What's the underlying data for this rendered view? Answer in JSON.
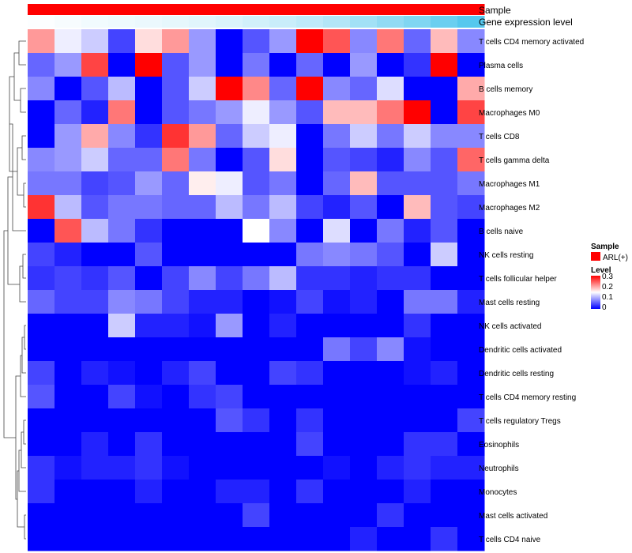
{
  "chart_data": {
    "type": "heatmap",
    "annotation_tracks": [
      {
        "name": "Sample",
        "label": "Sample"
      },
      {
        "name": "gene",
        "label": "Gene expression level"
      }
    ],
    "rows": [
      "T cells CD4 memory activated",
      "Plasma cells",
      "B cells memory",
      "Macrophages M0",
      "T cells CD8",
      "T cells gamma delta",
      "Macrophages M1",
      "Macrophages M2",
      "B cells naive",
      "NK cells resting",
      "T cells follicular helper",
      "Mast cells resting",
      "NK cells activated",
      "Dendritic cells activated",
      "Dendritic cells resting",
      "T cells CD4 memory resting",
      "T cells regulatory  Tregs",
      "Eosinophils",
      "Neutrophils",
      "Monocytes",
      "Mast cells activated",
      "T cells CD4 naive"
    ],
    "n_columns": 17,
    "values": [
      [
        0.21,
        0.14,
        0.12,
        0.04,
        0.17,
        0.21,
        0.09,
        0.0,
        0.05,
        0.09,
        0.3,
        0.25,
        0.08,
        0.23,
        0.06,
        0.19,
        0.08
      ],
      [
        0.06,
        0.09,
        0.26,
        0.0,
        0.3,
        0.05,
        0.09,
        0.0,
        0.07,
        0.0,
        0.06,
        0.0,
        0.09,
        0.0,
        0.03,
        0.3,
        0.0
      ],
      [
        0.08,
        0.0,
        0.05,
        0.11,
        0.0,
        0.05,
        0.12,
        0.3,
        0.22,
        0.06,
        0.3,
        0.08,
        0.06,
        0.13,
        0.0,
        0.0,
        0.2
      ],
      [
        0.0,
        0.06,
        0.02,
        0.23,
        0.0,
        0.05,
        0.07,
        0.09,
        0.14,
        0.09,
        0.05,
        0.19,
        0.19,
        0.23,
        0.3,
        0.0,
        0.26
      ],
      [
        0.0,
        0.09,
        0.2,
        0.08,
        0.03,
        0.27,
        0.21,
        0.06,
        0.12,
        0.14,
        0.0,
        0.07,
        0.12,
        0.07,
        0.12,
        0.08,
        0.08
      ],
      [
        0.08,
        0.09,
        0.12,
        0.06,
        0.06,
        0.23,
        0.07,
        0.0,
        0.05,
        0.17,
        0.0,
        0.05,
        0.04,
        0.02,
        0.08,
        0.05,
        0.24
      ],
      [
        0.07,
        0.07,
        0.04,
        0.05,
        0.09,
        0.06,
        0.16,
        0.14,
        0.05,
        0.07,
        0.0,
        0.06,
        0.19,
        0.05,
        0.05,
        0.05,
        0.07
      ],
      [
        0.27,
        0.11,
        0.05,
        0.07,
        0.07,
        0.06,
        0.06,
        0.11,
        0.07,
        0.11,
        0.04,
        0.02,
        0.05,
        0.0,
        0.19,
        0.05,
        0.04
      ],
      [
        0.0,
        0.25,
        0.11,
        0.07,
        0.03,
        0.0,
        0.0,
        0.0,
        0.15,
        0.08,
        0.0,
        0.13,
        0.0,
        0.07,
        0.02,
        0.05,
        0.0
      ],
      [
        0.04,
        0.02,
        0.0,
        0.0,
        0.05,
        0.0,
        0.0,
        0.0,
        0.0,
        0.0,
        0.07,
        0.08,
        0.07,
        0.05,
        0.0,
        0.12,
        0.0
      ],
      [
        0.03,
        0.04,
        0.03,
        0.05,
        0.0,
        0.04,
        0.08,
        0.04,
        0.07,
        0.11,
        0.03,
        0.03,
        0.02,
        0.03,
        0.03,
        0.0,
        0.0
      ],
      [
        0.06,
        0.04,
        0.04,
        0.08,
        0.07,
        0.04,
        0.02,
        0.02,
        0.0,
        0.01,
        0.04,
        0.01,
        0.02,
        0.0,
        0.07,
        0.07,
        0.02
      ],
      [
        0.0,
        0.0,
        0.0,
        0.12,
        0.02,
        0.02,
        0.01,
        0.09,
        0.0,
        0.02,
        0.0,
        0.0,
        0.0,
        0.0,
        0.03,
        0.0,
        0.0
      ],
      [
        0.0,
        0.0,
        0.0,
        0.0,
        0.0,
        0.0,
        0.0,
        0.0,
        0.0,
        0.0,
        0.0,
        0.07,
        0.04,
        0.08,
        0.01,
        0.0,
        0.0
      ],
      [
        0.04,
        0.0,
        0.02,
        0.01,
        0.0,
        0.02,
        0.04,
        0.0,
        0.0,
        0.04,
        0.03,
        0.0,
        0.0,
        0.0,
        0.01,
        0.02,
        0.0
      ],
      [
        0.05,
        0.0,
        0.0,
        0.04,
        0.01,
        0.0,
        0.03,
        0.04,
        0.0,
        0.0,
        0.0,
        0.0,
        0.0,
        0.0,
        0.0,
        0.0,
        0.0
      ],
      [
        0.0,
        0.0,
        0.0,
        0.0,
        0.0,
        0.0,
        0.0,
        0.05,
        0.03,
        0.0,
        0.03,
        0.0,
        0.0,
        0.0,
        0.0,
        0.0,
        0.04
      ],
      [
        0.0,
        0.0,
        0.02,
        0.0,
        0.03,
        0.0,
        0.0,
        0.0,
        0.0,
        0.0,
        0.04,
        0.0,
        0.0,
        0.0,
        0.03,
        0.03,
        0.0
      ],
      [
        0.03,
        0.01,
        0.02,
        0.02,
        0.03,
        0.01,
        0.0,
        0.0,
        0.0,
        0.0,
        0.0,
        0.01,
        0.0,
        0.02,
        0.03,
        0.02,
        0.02
      ],
      [
        0.03,
        0.0,
        0.0,
        0.0,
        0.02,
        0.0,
        0.0,
        0.02,
        0.02,
        0.0,
        0.03,
        0.0,
        0.0,
        0.0,
        0.02,
        0.0,
        0.0
      ],
      [
        0.0,
        0.0,
        0.0,
        0.0,
        0.0,
        0.0,
        0.0,
        0.0,
        0.04,
        0.0,
        0.0,
        0.0,
        0.0,
        0.03,
        0.0,
        0.0,
        0.0
      ],
      [
        0.0,
        0.0,
        0.0,
        0.0,
        0.0,
        0.0,
        0.0,
        0.0,
        0.0,
        0.0,
        0.0,
        0.0,
        0.02,
        0.0,
        0.0,
        0.03,
        0.0
      ]
    ],
    "gene_expression_level": [
      0.02,
      0.05,
      0.08,
      0.1,
      0.12,
      0.15,
      0.18,
      0.22,
      0.27,
      0.32,
      0.38,
      0.45,
      0.55,
      0.65,
      0.75,
      0.88,
      1.0
    ],
    "color_scale": {
      "title": "Level",
      "min": 0,
      "max": 0.3,
      "low": "#0000ff",
      "mid": "#ffffff",
      "high": "#ff0000",
      "ticks": [
        "0.3",
        "0.2",
        "0.1",
        "0"
      ]
    },
    "legend_sample": {
      "title": "Sample",
      "entry": "ARL(+)",
      "color": "#ff0000"
    },
    "gene_track_colors": {
      "low": "#ffffff",
      "high": "#56c8ee"
    },
    "dendrogram": "rows clustered (left side)"
  }
}
